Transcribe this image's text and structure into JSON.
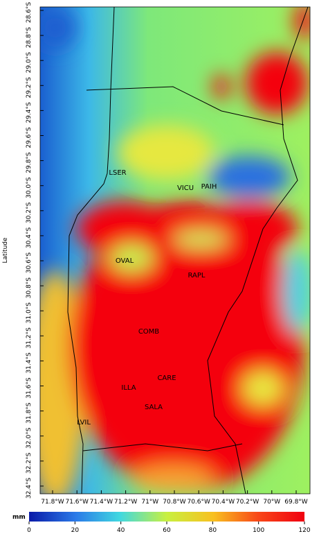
{
  "map": {
    "y_axis_label": "Latitude",
    "lat_ticks": [
      "28.6°S",
      "28.8°S",
      "29.0°S",
      "29.2°S",
      "29.4°S",
      "29.6°S",
      "29.8°S",
      "30.0°S",
      "30.2°S",
      "30.4°S",
      "30.6°S",
      "30.8°S",
      "31.0°S",
      "31.2°S",
      "31.4°S",
      "31.6°S",
      "31.8°S",
      "32.0°S",
      "32.2°S",
      "32.4°S"
    ],
    "lon_ticks": [
      "71.8°W",
      "71.6°W",
      "71.4°W",
      "71.2°W",
      "71°W",
      "70.8°W",
      "70.6°W",
      "70.4°W",
      "70.2°W",
      "70°W",
      "69.8°W"
    ],
    "stations": [
      "LSER",
      "VICU",
      "PAIH",
      "OVAL",
      "RAPL",
      "COMB",
      "CARE",
      "ILLA",
      "SALA",
      "LVIL"
    ],
    "colorbar": {
      "label": "mm",
      "lim": [
        0,
        120
      ],
      "ticks": [
        0,
        20,
        40,
        60,
        80,
        100,
        120
      ]
    }
  }
}
